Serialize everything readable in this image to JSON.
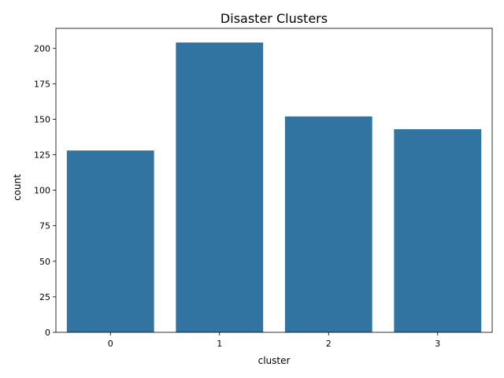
{
  "chart_data": {
    "type": "bar",
    "title": "Disaster Clusters",
    "xlabel": "cluster",
    "ylabel": "count",
    "categories": [
      "0",
      "1",
      "2",
      "3"
    ],
    "values": [
      128,
      204,
      152,
      143
    ],
    "ylim": [
      0,
      214
    ],
    "yticks": [
      0,
      25,
      50,
      75,
      100,
      125,
      150,
      175,
      200
    ],
    "bar_color": "#3274a1",
    "grid": false,
    "legend": "none"
  }
}
